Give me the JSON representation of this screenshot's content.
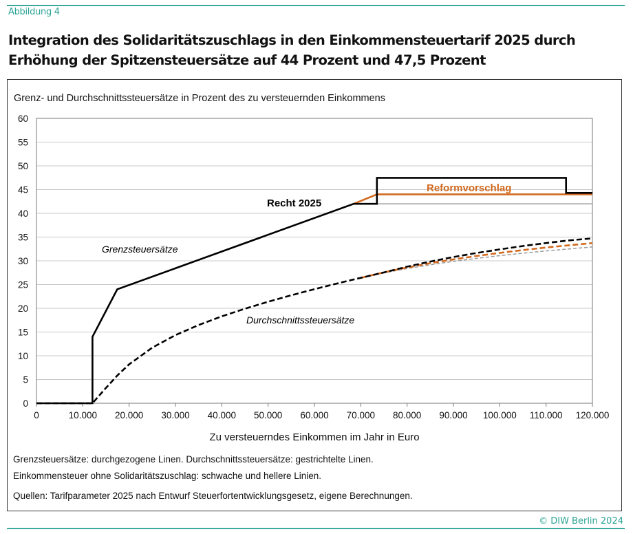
{
  "figure_label": "Abbildung 4",
  "title": "Integration des Solidaritätszuschlags in den Einkommensteuertarif 2025 durch Erhöhung der Spitzensteuersätze auf 44 Prozent und 47,5 Prozent",
  "notes": [
    "Grenzsteuersätze: durchgezogene Linen. Durchschnittssteuersätze: gestrichtelte Linen.",
    "Einkommensteuer ohne Solidaritätszuschlag: schwache und hellere Linien.",
    "Quellen: Tarifparameter 2025 nach Entwurf Steuerfortentwicklungsgesetz, eigene Berechnungen."
  ],
  "copyright": "© DIW Berlin 2024",
  "colors": {
    "accent": "#3aa99b",
    "recht": "#000000",
    "reform": "#d2691e",
    "ohne_soli": "#999999"
  },
  "chart_data": {
    "type": "line",
    "title": "Grenz- und Durchschnittssteuersätze in Prozent des zu versteuernden Einkommens",
    "xlabel": "Zu versteuerndes Einkommen im Jahr in Euro",
    "ylabel": "",
    "xlim": [
      0,
      120000
    ],
    "ylim": [
      0,
      60
    ],
    "xticks": [
      0,
      10000,
      20000,
      30000,
      40000,
      50000,
      60000,
      70000,
      80000,
      90000,
      100000,
      110000,
      120000
    ],
    "xtick_labels": [
      "0",
      "10.000",
      "20.000",
      "30.000",
      "40.000",
      "50.000",
      "60.000",
      "70.000",
      "80.000",
      "90.000",
      "100.000",
      "110.000",
      "120.000"
    ],
    "yticks": [
      0,
      5,
      10,
      15,
      20,
      25,
      30,
      35,
      40,
      45,
      50,
      55,
      60
    ],
    "ytick_labels": [
      "0",
      "5",
      "10",
      "15",
      "20",
      "25",
      "30",
      "35",
      "40",
      "45",
      "50",
      "55",
      "60"
    ],
    "grid": "horizontal",
    "annotations": [
      {
        "text": "Recht 2025",
        "style": "bold"
      },
      {
        "text": "Reformvorschlag",
        "style": "bold-orange"
      },
      {
        "text": "Grenzsteuersätze",
        "style": "italic"
      },
      {
        "text": "Durchschnittssteuersätze",
        "style": "italic"
      }
    ],
    "series": [
      {
        "key": "grenz_ohne_soli",
        "kind": "marginal",
        "color": "#999999",
        "dashed": false,
        "x": [
          68480,
          120000
        ],
        "y": [
          42,
          42
        ]
      },
      {
        "key": "grenz_reform",
        "kind": "marginal",
        "color": "#d2691e",
        "dashed": false,
        "x": [
          68480,
          73481,
          120000
        ],
        "y": [
          42,
          44,
          44
        ]
      },
      {
        "key": "grenz_recht",
        "kind": "marginal",
        "color": "#000000",
        "dashed": false,
        "x": [
          0,
          12096,
          12096,
          17443,
          68480,
          73481,
          73481,
          114307,
          114307,
          120000
        ],
        "y": [
          0,
          0,
          14,
          24,
          42,
          42,
          47.475,
          47.475,
          44.31,
          44.31
        ]
      },
      {
        "key": "durchschnitt_ohne_soli",
        "kind": "average",
        "color": "#999999",
        "dashed": true,
        "x": [
          70000,
          75000,
          80000,
          85000,
          90000,
          95000,
          100000,
          105000,
          110000,
          115000,
          120000
        ],
        "y": [
          26.41,
          27.45,
          28.36,
          29.16,
          29.88,
          30.51,
          31.09,
          31.61,
          32.08,
          32.51,
          32.91
        ]
      },
      {
        "key": "durchschnitt_reform",
        "kind": "average",
        "color": "#d2691e",
        "dashed": true,
        "x": [
          70000,
          75000,
          80000,
          85000,
          90000,
          95000,
          100000,
          105000,
          110000,
          115000,
          120000
        ],
        "y": [
          26.41,
          27.56,
          28.59,
          29.49,
          30.3,
          31.02,
          31.67,
          32.26,
          32.79,
          33.28,
          33.72
        ]
      },
      {
        "key": "durchschnitt_recht",
        "kind": "average",
        "color": "#000000",
        "dashed": true,
        "x": [
          0,
          12096,
          15000,
          17443,
          20000,
          25000,
          30000,
          35000,
          40000,
          45000,
          50000,
          55000,
          60000,
          65000,
          68480,
          70000,
          75000,
          80000,
          85000,
          90000,
          95000,
          100000,
          105000,
          110000,
          115000,
          120000
        ],
        "y": [
          0,
          0,
          3.23,
          5.82,
          8.2,
          11.71,
          14.35,
          16.48,
          18.3,
          19.92,
          21.38,
          22.74,
          24.03,
          25.25,
          26.07,
          26.41,
          27.55,
          28.77,
          29.84,
          30.79,
          31.65,
          32.41,
          33.11,
          33.74,
          34.3,
          34.72
        ]
      }
    ]
  }
}
